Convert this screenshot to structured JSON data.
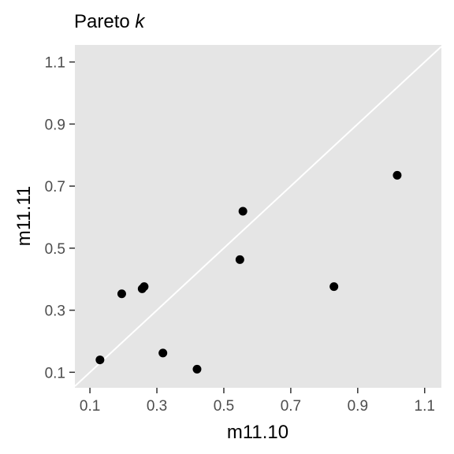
{
  "chart_data": {
    "type": "scatter",
    "title": "Pareto",
    "title_italic": "k",
    "xlabel": "m11.10",
    "ylabel": "m11.11",
    "xlim": [
      0.055,
      1.15
    ],
    "ylim": [
      0.05,
      1.155
    ],
    "x_ticks": [
      0.1,
      0.3,
      0.5,
      0.7,
      0.9,
      1.1
    ],
    "y_ticks": [
      0.1,
      0.3,
      0.5,
      0.7,
      0.9,
      1.1
    ],
    "x_tick_labels": [
      "0.1",
      "0.3",
      "0.5",
      "0.7",
      "0.9",
      "1.1"
    ],
    "y_tick_labels": [
      "0.1",
      "0.3",
      "0.5",
      "0.7",
      "0.9",
      "1.1"
    ],
    "reference_line": "y = x",
    "grid": false,
    "panel_color": "#e5e5e5",
    "point_color": "#000000",
    "line_color": "#ffffff",
    "points": [
      {
        "x": 0.13,
        "y": 0.14
      },
      {
        "x": 0.195,
        "y": 0.353
      },
      {
        "x": 0.256,
        "y": 0.369
      },
      {
        "x": 0.262,
        "y": 0.376
      },
      {
        "x": 0.318,
        "y": 0.162
      },
      {
        "x": 0.42,
        "y": 0.11
      },
      {
        "x": 0.548,
        "y": 0.463
      },
      {
        "x": 0.557,
        "y": 0.619
      },
      {
        "x": 0.829,
        "y": 0.376
      },
      {
        "x": 1.018,
        "y": 0.735
      }
    ]
  }
}
